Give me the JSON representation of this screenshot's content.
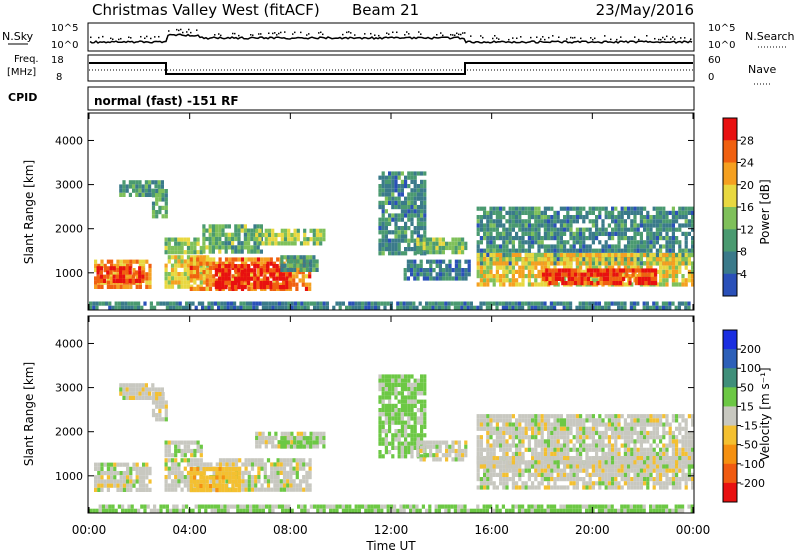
{
  "header": {
    "title": "Christmas Valley West (fitACF)",
    "beam": "Beam 21",
    "date": "23/May/2016"
  },
  "status_panels": {
    "nsky_label": "N.Sky",
    "nsearch_label": "N.Search",
    "nsky_ticks": [
      "10^5",
      "10^0"
    ],
    "nsearch_ticks": [
      "10^5",
      "10^0"
    ],
    "freq_label": [
      "Freq.",
      "[MHz]"
    ],
    "freq_ticks": [
      "18",
      "8"
    ],
    "nave_label": "Nave",
    "nave_ticks": [
      "60",
      "0"
    ],
    "cpid_label": "CPID",
    "cpid_value": "normal (fast) -151 RF"
  },
  "colors": {
    "power": [
      "#1010ee",
      "#2a50b8",
      "#3a7a8a",
      "#4a9a70",
      "#7fc05a",
      "#e8d840",
      "#f5a020",
      "#f06010",
      "#e81010"
    ],
    "velocity": [
      "#1a2ee0",
      "#2c5fb8",
      "#3f8f7a",
      "#6cc844",
      "#c8c8c0",
      "#f4c030",
      "#f59010",
      "#f05a10",
      "#e81010"
    ]
  },
  "chart_data": [
    {
      "type": "heatmap",
      "quantity": "power",
      "xlabel": "Time UT",
      "ylabel": "Slant Range [km]",
      "x_ticks": [
        "00:00",
        "04:00",
        "08:00",
        "12:00",
        "16:00",
        "20:00",
        "00:00"
      ],
      "y_ticks": [
        "1000",
        "2000",
        "3000",
        "4000"
      ],
      "ylim": [
        180,
        4600
      ],
      "colorbar_label": "Power [dB]",
      "colorbar_ticks": [
        "4",
        "8",
        "12",
        "16",
        "20",
        "24",
        "28"
      ],
      "color_range": [
        0,
        30
      ],
      "regions": [
        {
          "t": [
            0.2,
            2.4
          ],
          "r": [
            700,
            1300
          ],
          "level": 22
        },
        {
          "t": [
            0.3,
            2.2
          ],
          "r": [
            850,
            1150
          ],
          "level": 27
        },
        {
          "t": [
            1.2,
            2.9
          ],
          "r": [
            2800,
            3100
          ],
          "level": 11
        },
        {
          "t": [
            2.5,
            3.1
          ],
          "r": [
            2300,
            2900
          ],
          "level": 13
        },
        {
          "t": [
            3.0,
            4.7
          ],
          "r": [
            700,
            1400
          ],
          "level": 18
        },
        {
          "t": [
            3.0,
            4.5
          ],
          "r": [
            1500,
            1800
          ],
          "level": 15
        },
        {
          "t": [
            4.5,
            6.8
          ],
          "r": [
            1500,
            2100
          ],
          "level": 13
        },
        {
          "t": [
            4.0,
            8.8
          ],
          "r": [
            650,
            1350
          ],
          "level": 23
        },
        {
          "t": [
            5.0,
            8.0
          ],
          "r": [
            700,
            1200
          ],
          "level": 29
        },
        {
          "t": [
            6.6,
            9.3
          ],
          "r": [
            1650,
            2000
          ],
          "level": 16
        },
        {
          "t": [
            7.6,
            9.1
          ],
          "r": [
            1050,
            1400
          ],
          "level": 12
        },
        {
          "t": [
            11.5,
            13.4
          ],
          "r": [
            1400,
            3300
          ],
          "level": 10
        },
        {
          "t": [
            13.0,
            15.0
          ],
          "r": [
            1500,
            1800
          ],
          "level": 14
        },
        {
          "t": [
            12.5,
            15.1
          ],
          "r": [
            900,
            1300
          ],
          "level": 9
        },
        {
          "t": [
            15.4,
            24.0
          ],
          "r": [
            1200,
            2500
          ],
          "level": 10
        },
        {
          "t": [
            15.4,
            24.0
          ],
          "r": [
            700,
            1450
          ],
          "level": 19
        },
        {
          "t": [
            18.0,
            22.5
          ],
          "r": [
            800,
            1100
          ],
          "level": 27
        },
        {
          "t": [
            0.0,
            24.0
          ],
          "r": [
            180,
            350
          ],
          "level": 9
        }
      ]
    },
    {
      "type": "heatmap",
      "quantity": "velocity",
      "xlabel": "Time UT",
      "ylabel": "Slant Range [km]",
      "x_ticks": [
        "00:00",
        "04:00",
        "08:00",
        "12:00",
        "16:00",
        "20:00",
        "00:00"
      ],
      "y_ticks": [
        "1000",
        "2000",
        "3000",
        "4000"
      ],
      "ylim": [
        180,
        4600
      ],
      "colorbar_label": "Velocity [m s⁻¹]",
      "colorbar_ticks": [
        "200",
        "100",
        "50",
        "15",
        "-15",
        "-50",
        "-100",
        "-200"
      ],
      "color_range": [
        -250,
        250
      ],
      "regions": [
        {
          "t": [
            0.2,
            2.4
          ],
          "r": [
            700,
            1300
          ],
          "v": 0
        },
        {
          "t": [
            1.2,
            2.9
          ],
          "r": [
            2800,
            3100
          ],
          "v": 0
        },
        {
          "t": [
            2.5,
            3.1
          ],
          "r": [
            2300,
            2900
          ],
          "v": 0
        },
        {
          "t": [
            3.0,
            8.8
          ],
          "r": [
            650,
            1400
          ],
          "v": 0
        },
        {
          "t": [
            4.0,
            6.0
          ],
          "r": [
            700,
            1200
          ],
          "v": -40
        },
        {
          "t": [
            3.0,
            4.5
          ],
          "r": [
            1500,
            1800
          ],
          "v": 0
        },
        {
          "t": [
            6.6,
            9.3
          ],
          "r": [
            1650,
            2000
          ],
          "v": 0
        },
        {
          "t": [
            7.6,
            9.1
          ],
          "r": [
            1650,
            1900
          ],
          "v": 30
        },
        {
          "t": [
            11.5,
            13.4
          ],
          "r": [
            1400,
            3300
          ],
          "v": 25
        },
        {
          "t": [
            13.0,
            15.0
          ],
          "r": [
            1400,
            1800
          ],
          "v": 0
        },
        {
          "t": [
            15.4,
            24.0
          ],
          "r": [
            1200,
            2400
          ],
          "v": 0
        },
        {
          "t": [
            15.4,
            24.0
          ],
          "r": [
            700,
            1450
          ],
          "v": 0
        },
        {
          "t": [
            0.0,
            24.0
          ],
          "r": [
            180,
            350
          ],
          "v": 25
        }
      ]
    }
  ]
}
